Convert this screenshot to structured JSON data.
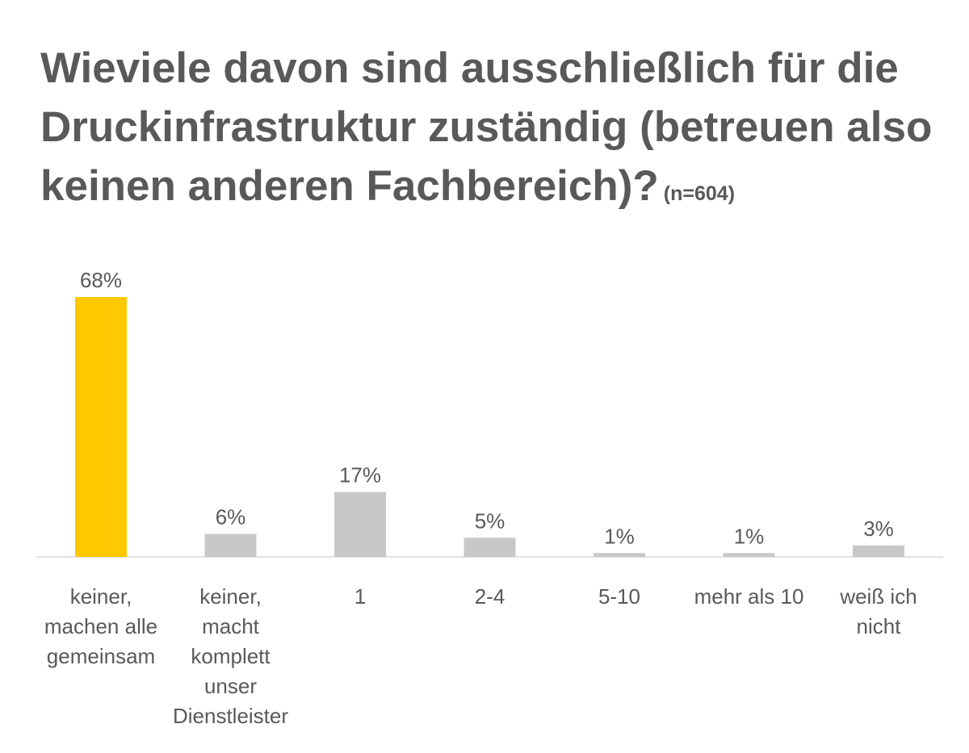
{
  "chart_data": {
    "type": "bar",
    "title": "Wieviele davon sind ausschließlich für die Druckinfrastruktur zuständig (betreuen also keinen anderen Fachbereich)?",
    "subtitle": "(n=604)",
    "categories": [
      [
        "keiner,",
        "machen alle",
        "gemeinsam"
      ],
      [
        "keiner,",
        "macht",
        "komplett",
        "unser",
        "Dienstleister"
      ],
      [
        "1"
      ],
      [
        "2-4"
      ],
      [
        "5-10"
      ],
      [
        "mehr als 10"
      ],
      [
        "weiß ich",
        "nicht"
      ]
    ],
    "values": [
      68,
      6,
      17,
      5,
      1,
      1,
      3
    ],
    "value_labels": [
      "68%",
      "6%",
      "17%",
      "5%",
      "1%",
      "1%",
      "3%"
    ],
    "unit": "%",
    "ylim": [
      0,
      68
    ],
    "grid": false,
    "legend": "none",
    "colors": {
      "highlight": "#FFC800",
      "bar": "#C8C8C8",
      "axis": "#D9D9D9",
      "text": "#595959"
    },
    "highlight_index": 0
  }
}
